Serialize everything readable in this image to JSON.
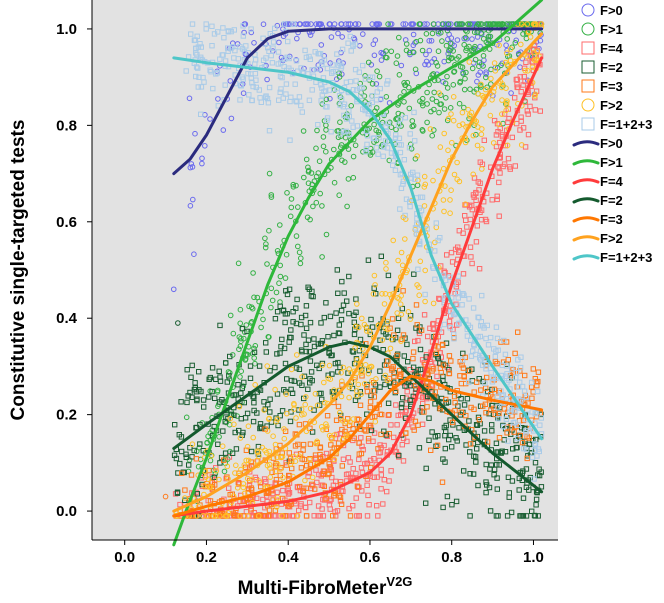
{
  "chart_data": {
    "type": "scatter",
    "xlabel": "Multi-FibroMeter",
    "xlabel_superscript": "V2G",
    "ylabel": "Constitutive single-targeted tests",
    "xlim": [
      -0.08,
      1.06
    ],
    "ylim": [
      -0.06,
      1.06
    ],
    "x_ticks": [
      "0.0",
      "0.2",
      "0.4",
      "0.6",
      "0.8",
      "1.0"
    ],
    "y_ticks": [
      "0.0",
      "0.2",
      "0.4",
      "0.6",
      "0.8",
      "1.0"
    ],
    "x_tick_values": [
      0.0,
      0.2,
      0.4,
      0.6,
      0.8,
      1.0
    ],
    "y_tick_values": [
      0.0,
      0.2,
      0.4,
      0.6,
      0.8,
      1.0
    ],
    "grid": false,
    "background": "#e2e2e2",
    "legend_position": "right",
    "scatter_series": [
      {
        "name": "F>0",
        "marker": "circle",
        "color": "#6a6aee",
        "x_range": [
          0.15,
          1.02
        ],
        "fit": "F>0",
        "spread": 0.06,
        "density": 260
      },
      {
        "name": "F>1",
        "marker": "circle",
        "color": "#33b044",
        "x_range": [
          0.15,
          1.02
        ],
        "fit": "F>1",
        "spread": 0.07,
        "density": 520
      },
      {
        "name": "F=4",
        "marker": "square",
        "color": "#ff6b6b",
        "x_range": [
          0.12,
          1.02
        ],
        "fit": "F=4",
        "spread": 0.05,
        "density": 520
      },
      {
        "name": "F=2",
        "marker": "square",
        "color": "#1a5e32",
        "x_range": [
          0.12,
          1.02
        ],
        "fit": "F=2",
        "spread": 0.08,
        "density": 600
      },
      {
        "name": "F=3",
        "marker": "square",
        "color": "#ff7a1a",
        "x_range": [
          0.12,
          1.02
        ],
        "fit": "F=3",
        "spread": 0.06,
        "density": 420
      },
      {
        "name": "F>2",
        "marker": "circle",
        "color": "#ffc125",
        "x_range": [
          0.12,
          1.02
        ],
        "fit": "F>2",
        "spread": 0.07,
        "density": 420
      },
      {
        "name": "F=1+2+3",
        "marker": "square",
        "color": "#a9cbe8",
        "x_range": [
          0.15,
          1.02
        ],
        "fit": "F=1+2+3",
        "spread": 0.05,
        "density": 520
      }
    ],
    "line_series": [
      {
        "name": "F>0",
        "color": "#2b2b7e",
        "x": [
          0.12,
          0.16,
          0.2,
          0.25,
          0.3,
          0.35,
          0.4,
          0.5,
          0.6,
          0.8,
          1.02
        ],
        "y": [
          0.7,
          0.73,
          0.78,
          0.86,
          0.94,
          0.98,
          0.995,
          1.0,
          1.0,
          1.0,
          1.0
        ]
      },
      {
        "name": "F>1",
        "color": "#2eb83a",
        "x": [
          0.12,
          0.15,
          0.2,
          0.25,
          0.3,
          0.35,
          0.4,
          0.45,
          0.5,
          0.6,
          0.7,
          0.8,
          0.9,
          1.02
        ],
        "y": [
          -0.07,
          0.0,
          0.11,
          0.23,
          0.35,
          0.47,
          0.57,
          0.65,
          0.72,
          0.81,
          0.87,
          0.92,
          0.97,
          1.06
        ]
      },
      {
        "name": "F=4",
        "color": "#ff3b3b",
        "x": [
          0.12,
          0.2,
          0.3,
          0.4,
          0.5,
          0.6,
          0.65,
          0.7,
          0.75,
          0.8,
          0.85,
          0.9,
          0.95,
          1.02
        ],
        "y": [
          -0.01,
          0.0,
          0.01,
          0.02,
          0.04,
          0.08,
          0.12,
          0.2,
          0.33,
          0.47,
          0.59,
          0.71,
          0.81,
          0.94
        ]
      },
      {
        "name": "F=2",
        "color": "#145a2e",
        "x": [
          0.12,
          0.2,
          0.25,
          0.3,
          0.35,
          0.4,
          0.45,
          0.5,
          0.55,
          0.6,
          0.65,
          0.7,
          0.8,
          0.9,
          1.02
        ],
        "y": [
          0.13,
          0.18,
          0.21,
          0.24,
          0.27,
          0.3,
          0.32,
          0.34,
          0.35,
          0.34,
          0.32,
          0.28,
          0.2,
          0.12,
          0.04
        ]
      },
      {
        "name": "F=3",
        "color": "#ff7700",
        "x": [
          0.12,
          0.2,
          0.3,
          0.4,
          0.5,
          0.55,
          0.6,
          0.65,
          0.7,
          0.75,
          0.8,
          0.9,
          1.02
        ],
        "y": [
          -0.01,
          0.01,
          0.03,
          0.06,
          0.11,
          0.15,
          0.2,
          0.25,
          0.28,
          0.27,
          0.25,
          0.23,
          0.21
        ]
      },
      {
        "name": "F>2",
        "color": "#ffa21f",
        "x": [
          0.12,
          0.2,
          0.3,
          0.4,
          0.5,
          0.55,
          0.6,
          0.65,
          0.7,
          0.75,
          0.8,
          0.85,
          0.9,
          1.02
        ],
        "y": [
          0.0,
          0.03,
          0.08,
          0.14,
          0.22,
          0.27,
          0.34,
          0.43,
          0.53,
          0.63,
          0.73,
          0.81,
          0.88,
          0.99
        ]
      },
      {
        "name": "F=1+2+3",
        "color": "#4ec6c8",
        "x": [
          0.12,
          0.2,
          0.3,
          0.4,
          0.5,
          0.55,
          0.6,
          0.65,
          0.7,
          0.75,
          0.8,
          0.9,
          1.02
        ],
        "y": [
          0.94,
          0.93,
          0.92,
          0.91,
          0.89,
          0.87,
          0.83,
          0.77,
          0.67,
          0.53,
          0.43,
          0.3,
          0.15
        ]
      }
    ],
    "outliers": [
      {
        "series": "F>0",
        "x": 0.12,
        "y": 0.46
      },
      {
        "series": "F=2",
        "x": 0.13,
        "y": 0.39
      },
      {
        "series": "F=3",
        "x": 0.1,
        "y": 0.03
      }
    ]
  },
  "legend": {
    "scatter_labels": [
      "F>0",
      "F>1",
      "F=4",
      "F=2",
      "F=3",
      "F>2",
      "F=1+2+3"
    ],
    "line_labels": [
      "F>0",
      "F>1",
      "F=4",
      "F=2",
      "F=3",
      "F>2",
      "F=1+2+3"
    ]
  }
}
